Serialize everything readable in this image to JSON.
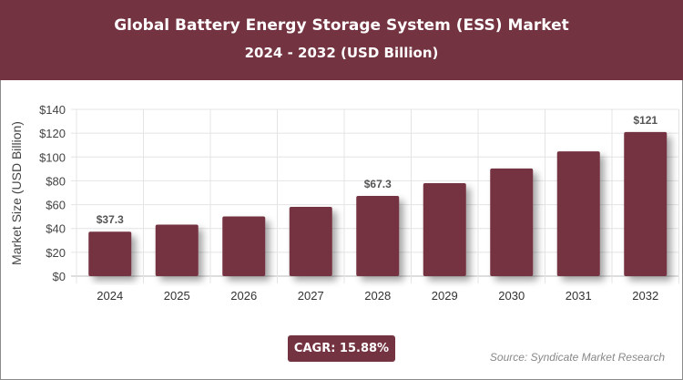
{
  "header": {
    "title": "Global Battery Energy Storage System (ESS) Market",
    "subtitle": "2024 - 2032 (USD Billion)"
  },
  "chart_data": {
    "type": "bar",
    "categories": [
      "2024",
      "2025",
      "2026",
      "2027",
      "2028",
      "2029",
      "2030",
      "2031",
      "2032"
    ],
    "values": [
      37.3,
      43.2,
      50.1,
      58.1,
      67.3,
      78.0,
      90.4,
      104.7,
      121
    ],
    "data_labels": {
      "2024": "$37.3",
      "2028": "$67.3",
      "2032": "$121"
    },
    "ylabel": "Market Size (USD Billion)",
    "xlabel": "",
    "ylim": [
      0,
      140
    ],
    "yticks": [
      "$0",
      "$20",
      "$40",
      "$60",
      "$80",
      "$100",
      "$120",
      "$140"
    ],
    "grid": true,
    "bar_color": "#743340"
  },
  "footer": {
    "cagr": "CAGR: 15.88%",
    "source": "Source: Syndicate Market Research"
  }
}
